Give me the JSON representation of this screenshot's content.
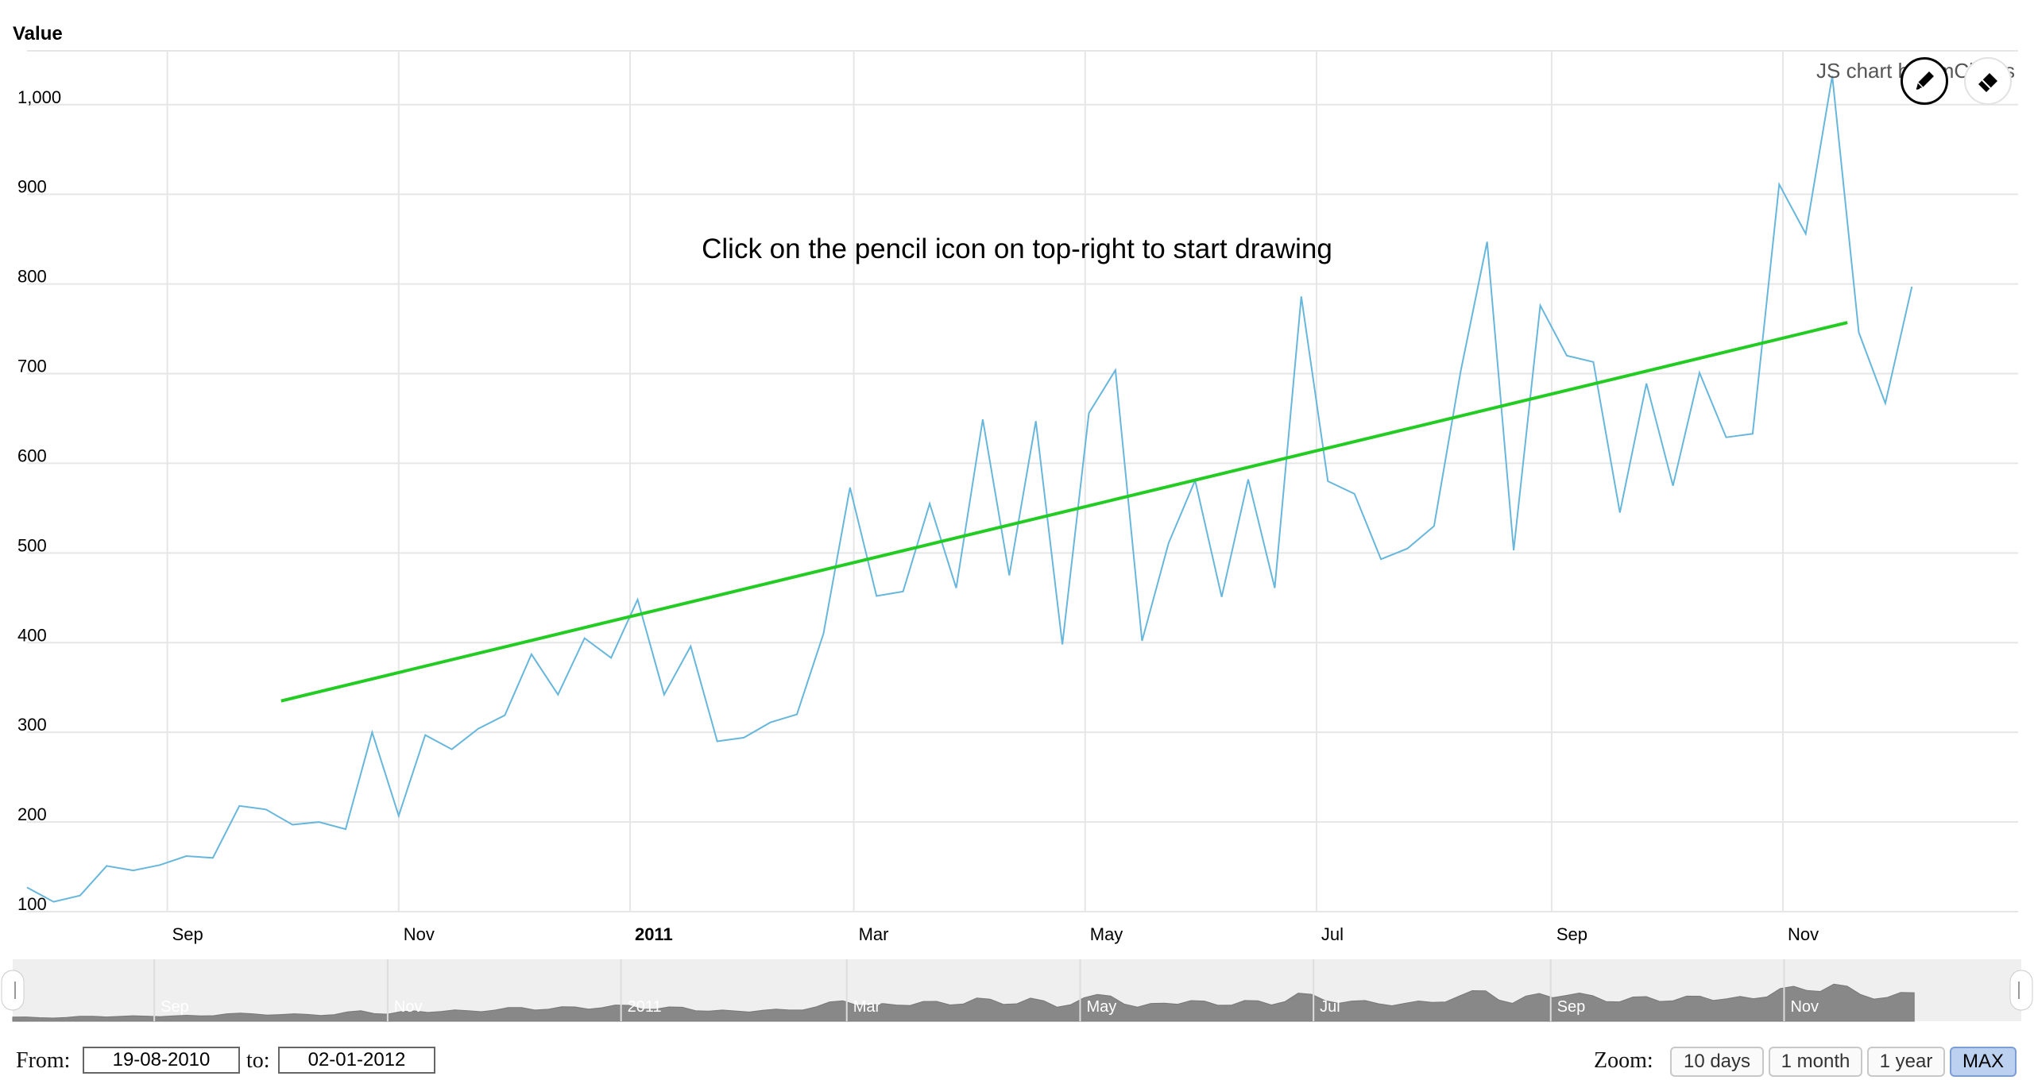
{
  "chart_data": {
    "type": "line",
    "ylabel": "Value",
    "ylim": [
      100,
      1060
    ],
    "yticks": [
      100,
      200,
      300,
      400,
      500,
      600,
      700,
      800,
      900,
      1000
    ],
    "ytick_labels": [
      "100",
      "200",
      "300",
      "400",
      "500",
      "600",
      "700",
      "800",
      "900",
      "1,000"
    ],
    "xlim": [
      "2010-07-26",
      "2012-01-02"
    ],
    "xticks": [
      {
        "date": "2010-09-01",
        "label": "Sep",
        "bold": false
      },
      {
        "date": "2010-11-01",
        "label": "Nov",
        "bold": false
      },
      {
        "date": "2011-01-01",
        "label": "2011",
        "bold": true
      },
      {
        "date": "2011-03-01",
        "label": "Mar",
        "bold": false
      },
      {
        "date": "2011-05-01",
        "label": "May",
        "bold": false
      },
      {
        "date": "2011-07-01",
        "label": "Jul",
        "bold": false
      },
      {
        "date": "2011-09-01",
        "label": "Sep",
        "bold": false
      },
      {
        "date": "2011-11-01",
        "label": "Nov",
        "bold": false
      }
    ],
    "series": [
      {
        "color": "#67b7dc",
        "points": [
          [
            "2010-07-26",
            127
          ],
          [
            "2010-08-02",
            111
          ],
          [
            "2010-08-09",
            118
          ],
          [
            "2010-08-16",
            151
          ],
          [
            "2010-08-23",
            146
          ],
          [
            "2010-08-30",
            152
          ],
          [
            "2010-09-06",
            162
          ],
          [
            "2010-09-13",
            160
          ],
          [
            "2010-09-20",
            218
          ],
          [
            "2010-09-27",
            214
          ],
          [
            "2010-10-04",
            197
          ],
          [
            "2010-10-11",
            200
          ],
          [
            "2010-10-18",
            192
          ],
          [
            "2010-10-25",
            300
          ],
          [
            "2010-11-01",
            207
          ],
          [
            "2010-11-08",
            297
          ],
          [
            "2010-11-15",
            281
          ],
          [
            "2010-11-22",
            304
          ],
          [
            "2010-11-29",
            319
          ],
          [
            "2010-12-06",
            387
          ],
          [
            "2010-12-13",
            342
          ],
          [
            "2010-12-20",
            405
          ],
          [
            "2010-12-27",
            383
          ],
          [
            "2011-01-03",
            448
          ],
          [
            "2011-01-10",
            342
          ],
          [
            "2011-01-17",
            396
          ],
          [
            "2011-01-24",
            290
          ],
          [
            "2011-01-31",
            294
          ],
          [
            "2011-02-07",
            311
          ],
          [
            "2011-02-14",
            320
          ],
          [
            "2011-02-21",
            410
          ],
          [
            "2011-02-28",
            573
          ],
          [
            "2011-03-07",
            452
          ],
          [
            "2011-03-14",
            457
          ],
          [
            "2011-03-21",
            555
          ],
          [
            "2011-03-28",
            461
          ],
          [
            "2011-04-04",
            649
          ],
          [
            "2011-04-11",
            475
          ],
          [
            "2011-04-18",
            647
          ],
          [
            "2011-04-25",
            398
          ],
          [
            "2011-05-02",
            656
          ],
          [
            "2011-05-09",
            704
          ],
          [
            "2011-05-16",
            402
          ],
          [
            "2011-05-23",
            511
          ],
          [
            "2011-05-30",
            581
          ],
          [
            "2011-06-06",
            451
          ],
          [
            "2011-06-13",
            582
          ],
          [
            "2011-06-20",
            461
          ],
          [
            "2011-06-27",
            786
          ],
          [
            "2011-07-04",
            580
          ],
          [
            "2011-07-11",
            566
          ],
          [
            "2011-07-18",
            493
          ],
          [
            "2011-07-25",
            505
          ],
          [
            "2011-08-01",
            530
          ],
          [
            "2011-08-08",
            702
          ],
          [
            "2011-08-15",
            847
          ],
          [
            "2011-08-22",
            503
          ],
          [
            "2011-08-29",
            776
          ],
          [
            "2011-09-05",
            720
          ],
          [
            "2011-09-12",
            713
          ],
          [
            "2011-09-19",
            545
          ],
          [
            "2011-09-26",
            689
          ],
          [
            "2011-10-03",
            575
          ],
          [
            "2011-10-10",
            701
          ],
          [
            "2011-10-17",
            629
          ],
          [
            "2011-10-24",
            633
          ],
          [
            "2011-10-31",
            911
          ],
          [
            "2011-11-07",
            856
          ],
          [
            "2011-11-14",
            1032
          ],
          [
            "2011-11-21",
            746
          ],
          [
            "2011-11-28",
            667
          ],
          [
            "2011-12-05",
            797
          ]
        ]
      }
    ],
    "trend_line": {
      "color": "#22cc22",
      "start": [
        "2010-10-01",
        335
      ],
      "end": [
        "2011-11-18",
        757
      ]
    },
    "annotation": "Click on the pencil icon on top-right to start drawing",
    "credit": "JS chart by amCharts",
    "scrollbar": {
      "labels": [
        "Sep",
        "Nov",
        "2011",
        "Mar",
        "May",
        "Jul",
        "Sep",
        "Nov"
      ]
    }
  },
  "controls": {
    "from_label": "From:",
    "from_value": "19-08-2010",
    "to_label": "to:",
    "to_value": "02-01-2012",
    "zoom_label": "Zoom:",
    "zoom_buttons": [
      "10 days",
      "1 month",
      "1 year",
      "MAX"
    ],
    "active_zoom": "MAX"
  },
  "toolbar": {
    "pencil_icon": "pencil-icon",
    "eraser_icon": "eraser-icon"
  }
}
